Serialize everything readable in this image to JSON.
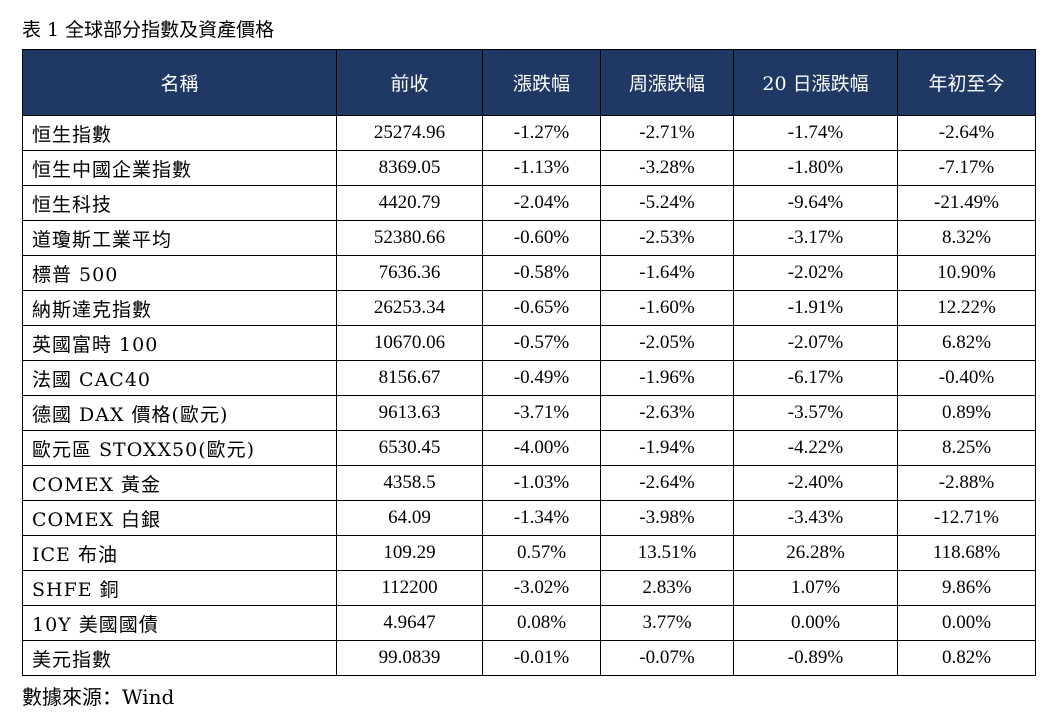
{
  "caption": "表 1 全球部分指數及資產價格",
  "source": "數據來源：Wind",
  "table": {
    "headers": [
      "名稱",
      "前收",
      "漲跌幅",
      "周漲跌幅",
      "20 日漲跌幅",
      "年初至今"
    ],
    "rows": [
      [
        "恒生指數",
        "25274.96",
        "-1.27%",
        "-2.71%",
        "-1.74%",
        "-2.64%"
      ],
      [
        "恒生中國企業指數",
        "8369.05",
        "-1.13%",
        "-3.28%",
        "-1.80%",
        "-7.17%"
      ],
      [
        "恒生科技",
        "4420.79",
        "-2.04%",
        "-5.24%",
        "-9.64%",
        "-21.49%"
      ],
      [
        "道瓊斯工業平均",
        "52380.66",
        "-0.60%",
        "-2.53%",
        "-3.17%",
        "8.32%"
      ],
      [
        "標普 500",
        "7636.36",
        "-0.58%",
        "-1.64%",
        "-2.02%",
        "10.90%"
      ],
      [
        "納斯達克指數",
        "26253.34",
        "-0.65%",
        "-1.60%",
        "-1.91%",
        "12.22%"
      ],
      [
        "英國富時 100",
        "10670.06",
        "-0.57%",
        "-2.05%",
        "-2.07%",
        "6.82%"
      ],
      [
        "法國 CAC40",
        "8156.67",
        "-0.49%",
        "-1.96%",
        "-6.17%",
        "-0.40%"
      ],
      [
        "德國 DAX 價格(歐元)",
        "9613.63",
        "-3.71%",
        "-2.63%",
        "-3.57%",
        "0.89%"
      ],
      [
        "歐元區 STOXX50(歐元)",
        "6530.45",
        "-4.00%",
        "-1.94%",
        "-4.22%",
        "8.25%"
      ],
      [
        "COMEX 黃金",
        "4358.5",
        "-1.03%",
        "-2.64%",
        "-2.40%",
        "-2.88%"
      ],
      [
        "COMEX 白銀",
        "64.09",
        "-1.34%",
        "-3.98%",
        "-3.43%",
        "-12.71%"
      ],
      [
        "ICE 布油",
        "109.29",
        "0.57%",
        "13.51%",
        "26.28%",
        "118.68%"
      ],
      [
        "SHFE 銅",
        "112200",
        "-3.02%",
        "2.83%",
        "1.07%",
        "9.86%"
      ],
      [
        "10Y 美國國債",
        "4.9647",
        "0.08%",
        "3.77%",
        "0.00%",
        "0.00%"
      ],
      [
        "美元指數",
        "99.0839",
        "-0.01%",
        "-0.07%",
        "-0.89%",
        "0.82%"
      ]
    ]
  },
  "colors": {
    "header_background": "#1f3864",
    "header_text": "#ffffff",
    "border": "#000000"
  }
}
